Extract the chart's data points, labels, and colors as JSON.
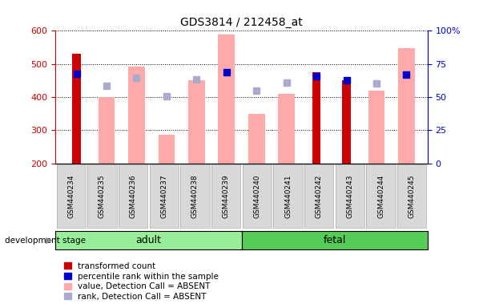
{
  "title": "GDS3814 / 212458_at",
  "categories": [
    "GSM440234",
    "GSM440235",
    "GSM440236",
    "GSM440237",
    "GSM440238",
    "GSM440239",
    "GSM440240",
    "GSM440241",
    "GSM440242",
    "GSM440243",
    "GSM440244",
    "GSM440245"
  ],
  "transformed_count": [
    530,
    null,
    null,
    null,
    null,
    null,
    null,
    null,
    475,
    450,
    null,
    null
  ],
  "percentile_rank_val": [
    470,
    null,
    null,
    null,
    null,
    475,
    null,
    null,
    462,
    450,
    null,
    468
  ],
  "absent_value": [
    null,
    400,
    492,
    285,
    450,
    590,
    350,
    410,
    null,
    null,
    420,
    548
  ],
  "absent_rank_val": [
    null,
    433,
    458,
    403,
    452,
    null,
    420,
    443,
    null,
    null,
    442,
    468
  ],
  "ylim_left": [
    200,
    600
  ],
  "ylim_right": [
    0,
    100
  ],
  "yticks_left": [
    200,
    300,
    400,
    500,
    600
  ],
  "yticks_right": [
    0,
    25,
    50,
    75,
    100
  ],
  "color_red": "#cc0000",
  "color_blue": "#0000cc",
  "color_pink": "#ffaaaa",
  "color_lightblue": "#aaaacc",
  "color_adult_bg": "#99ee99",
  "color_fetal_bg": "#55cc55",
  "color_axis_left": "#cc0000",
  "color_axis_right": "#0000cc",
  "legend_items": [
    "transformed count",
    "percentile rank within the sample",
    "value, Detection Call = ABSENT",
    "rank, Detection Call = ABSENT"
  ],
  "stage_label": "development stage",
  "adult_label": "adult",
  "fetal_label": "fetal",
  "n_adult": 6,
  "n_fetal": 6
}
